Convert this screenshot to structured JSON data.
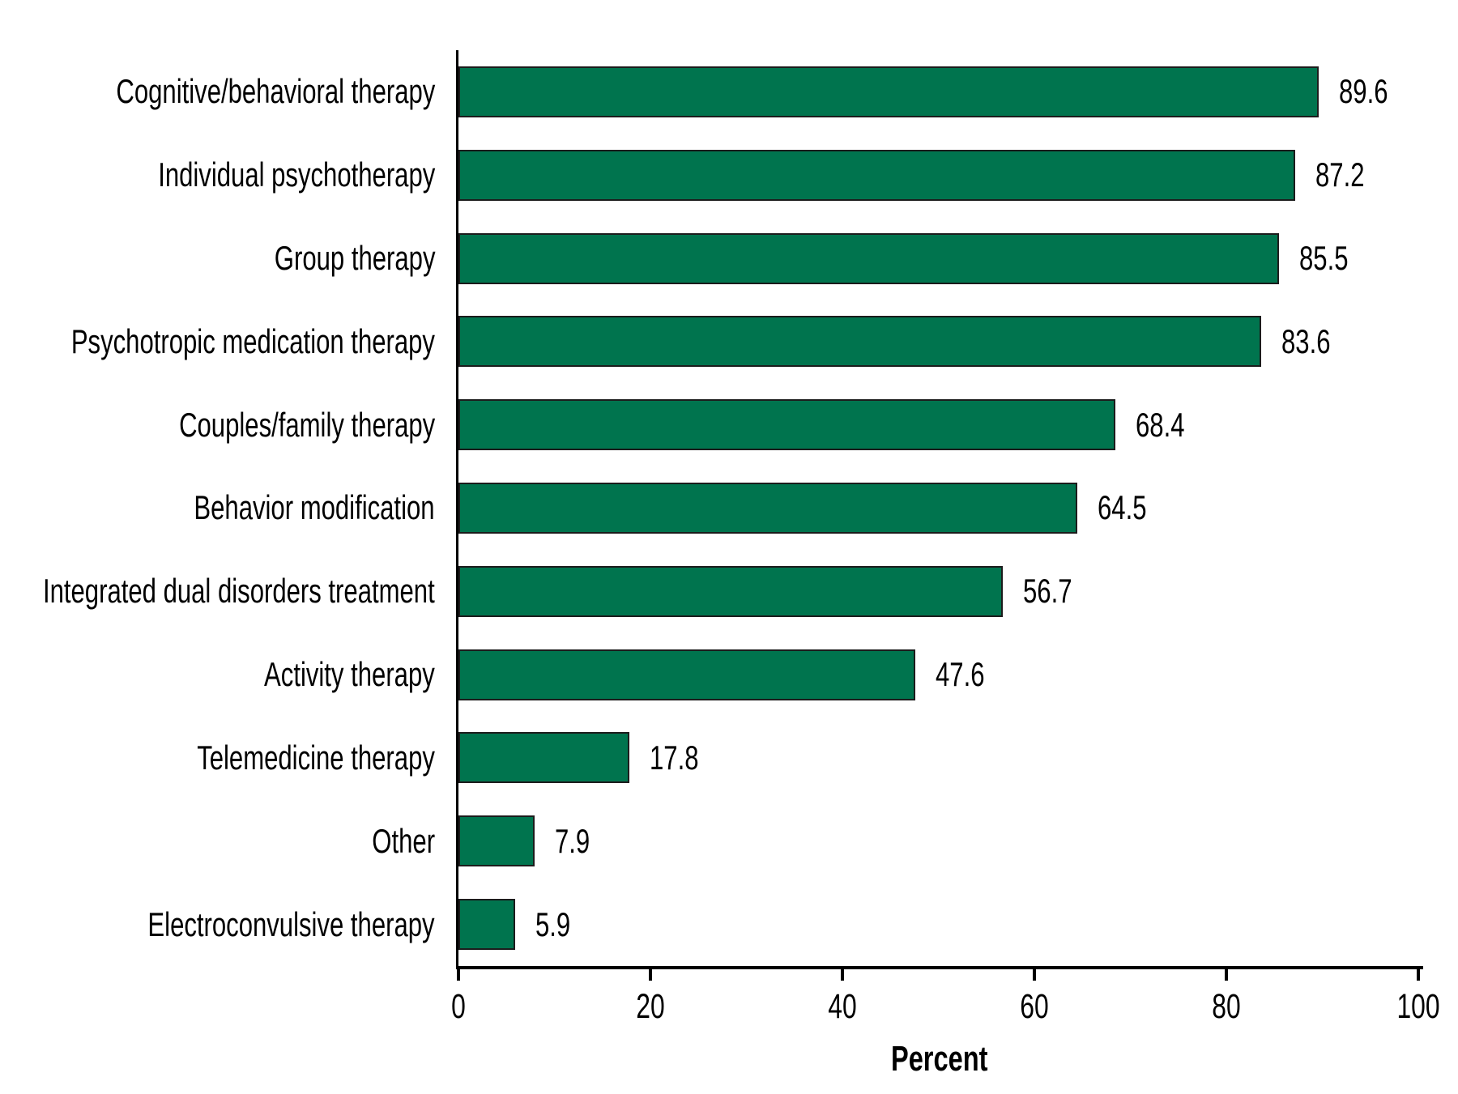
{
  "chart_data": {
    "type": "bar",
    "orientation": "horizontal",
    "title": "",
    "xlabel": "Percent",
    "ylabel": "",
    "xlim": [
      0,
      100
    ],
    "xticks": [
      0,
      20,
      40,
      60,
      80,
      100
    ],
    "grid": false,
    "legend": false,
    "bar_color": "#00744E",
    "bar_border_color": "#1c1c1c",
    "axis_color": "#000000",
    "text_color": "#000000",
    "categories": [
      "Cognitive/behavioral therapy",
      "Individual psychotherapy",
      "Group therapy",
      "Psychotropic medication therapy",
      "Couples/family therapy",
      "Behavior modification",
      "Integrated dual disorders treatment",
      "Activity therapy",
      "Telemedicine therapy",
      "Other",
      "Electroconvulsive therapy"
    ],
    "values": [
      89.6,
      87.2,
      85.5,
      83.6,
      68.4,
      64.5,
      56.7,
      47.6,
      17.8,
      7.9,
      5.9
    ],
    "value_labels": [
      "89.6",
      "87.2",
      "85.5",
      "83.6",
      "68.4",
      "64.5",
      "56.7",
      "47.6",
      "17.8",
      "7.9",
      "5.9"
    ]
  }
}
